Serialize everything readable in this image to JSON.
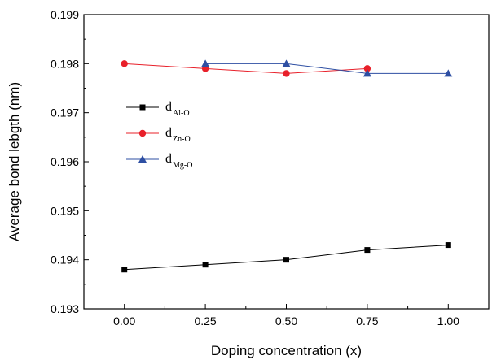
{
  "chart_data": {
    "type": "line",
    "xlabel": "Doping concentration (x)",
    "ylabel": "Average bond lebgth (nm)",
    "xlim": [
      -0.125,
      1.125
    ],
    "ylim": [
      0.193,
      0.199
    ],
    "x_ticks": [
      "0.00",
      "0.25",
      "0.50",
      "0.75",
      "1.00"
    ],
    "y_ticks": [
      "0.193",
      "0.194",
      "0.195",
      "0.196",
      "0.197",
      "0.198",
      "0.199"
    ],
    "grid": false,
    "legend_position": "center-left",
    "series": [
      {
        "name": "d",
        "name_subscript": "Al-O",
        "color": "#000000",
        "marker": "square",
        "x": [
          0.0,
          0.25,
          0.5,
          0.75,
          1.0
        ],
        "y": [
          0.1938,
          0.1939,
          0.194,
          0.1942,
          0.1943
        ]
      },
      {
        "name": "d",
        "name_subscript": "Zn-O",
        "color": "#e8202a",
        "marker": "circle",
        "x": [
          0.0,
          0.25,
          0.5,
          0.75
        ],
        "y": [
          0.198,
          0.1979,
          0.1978,
          0.1979
        ]
      },
      {
        "name": "d",
        "name_subscript": "Mg-O",
        "color": "#2e4fa3",
        "marker": "triangle",
        "x": [
          0.25,
          0.5,
          0.75,
          1.0
        ],
        "y": [
          0.198,
          0.198,
          0.1978,
          0.1978
        ]
      }
    ]
  }
}
